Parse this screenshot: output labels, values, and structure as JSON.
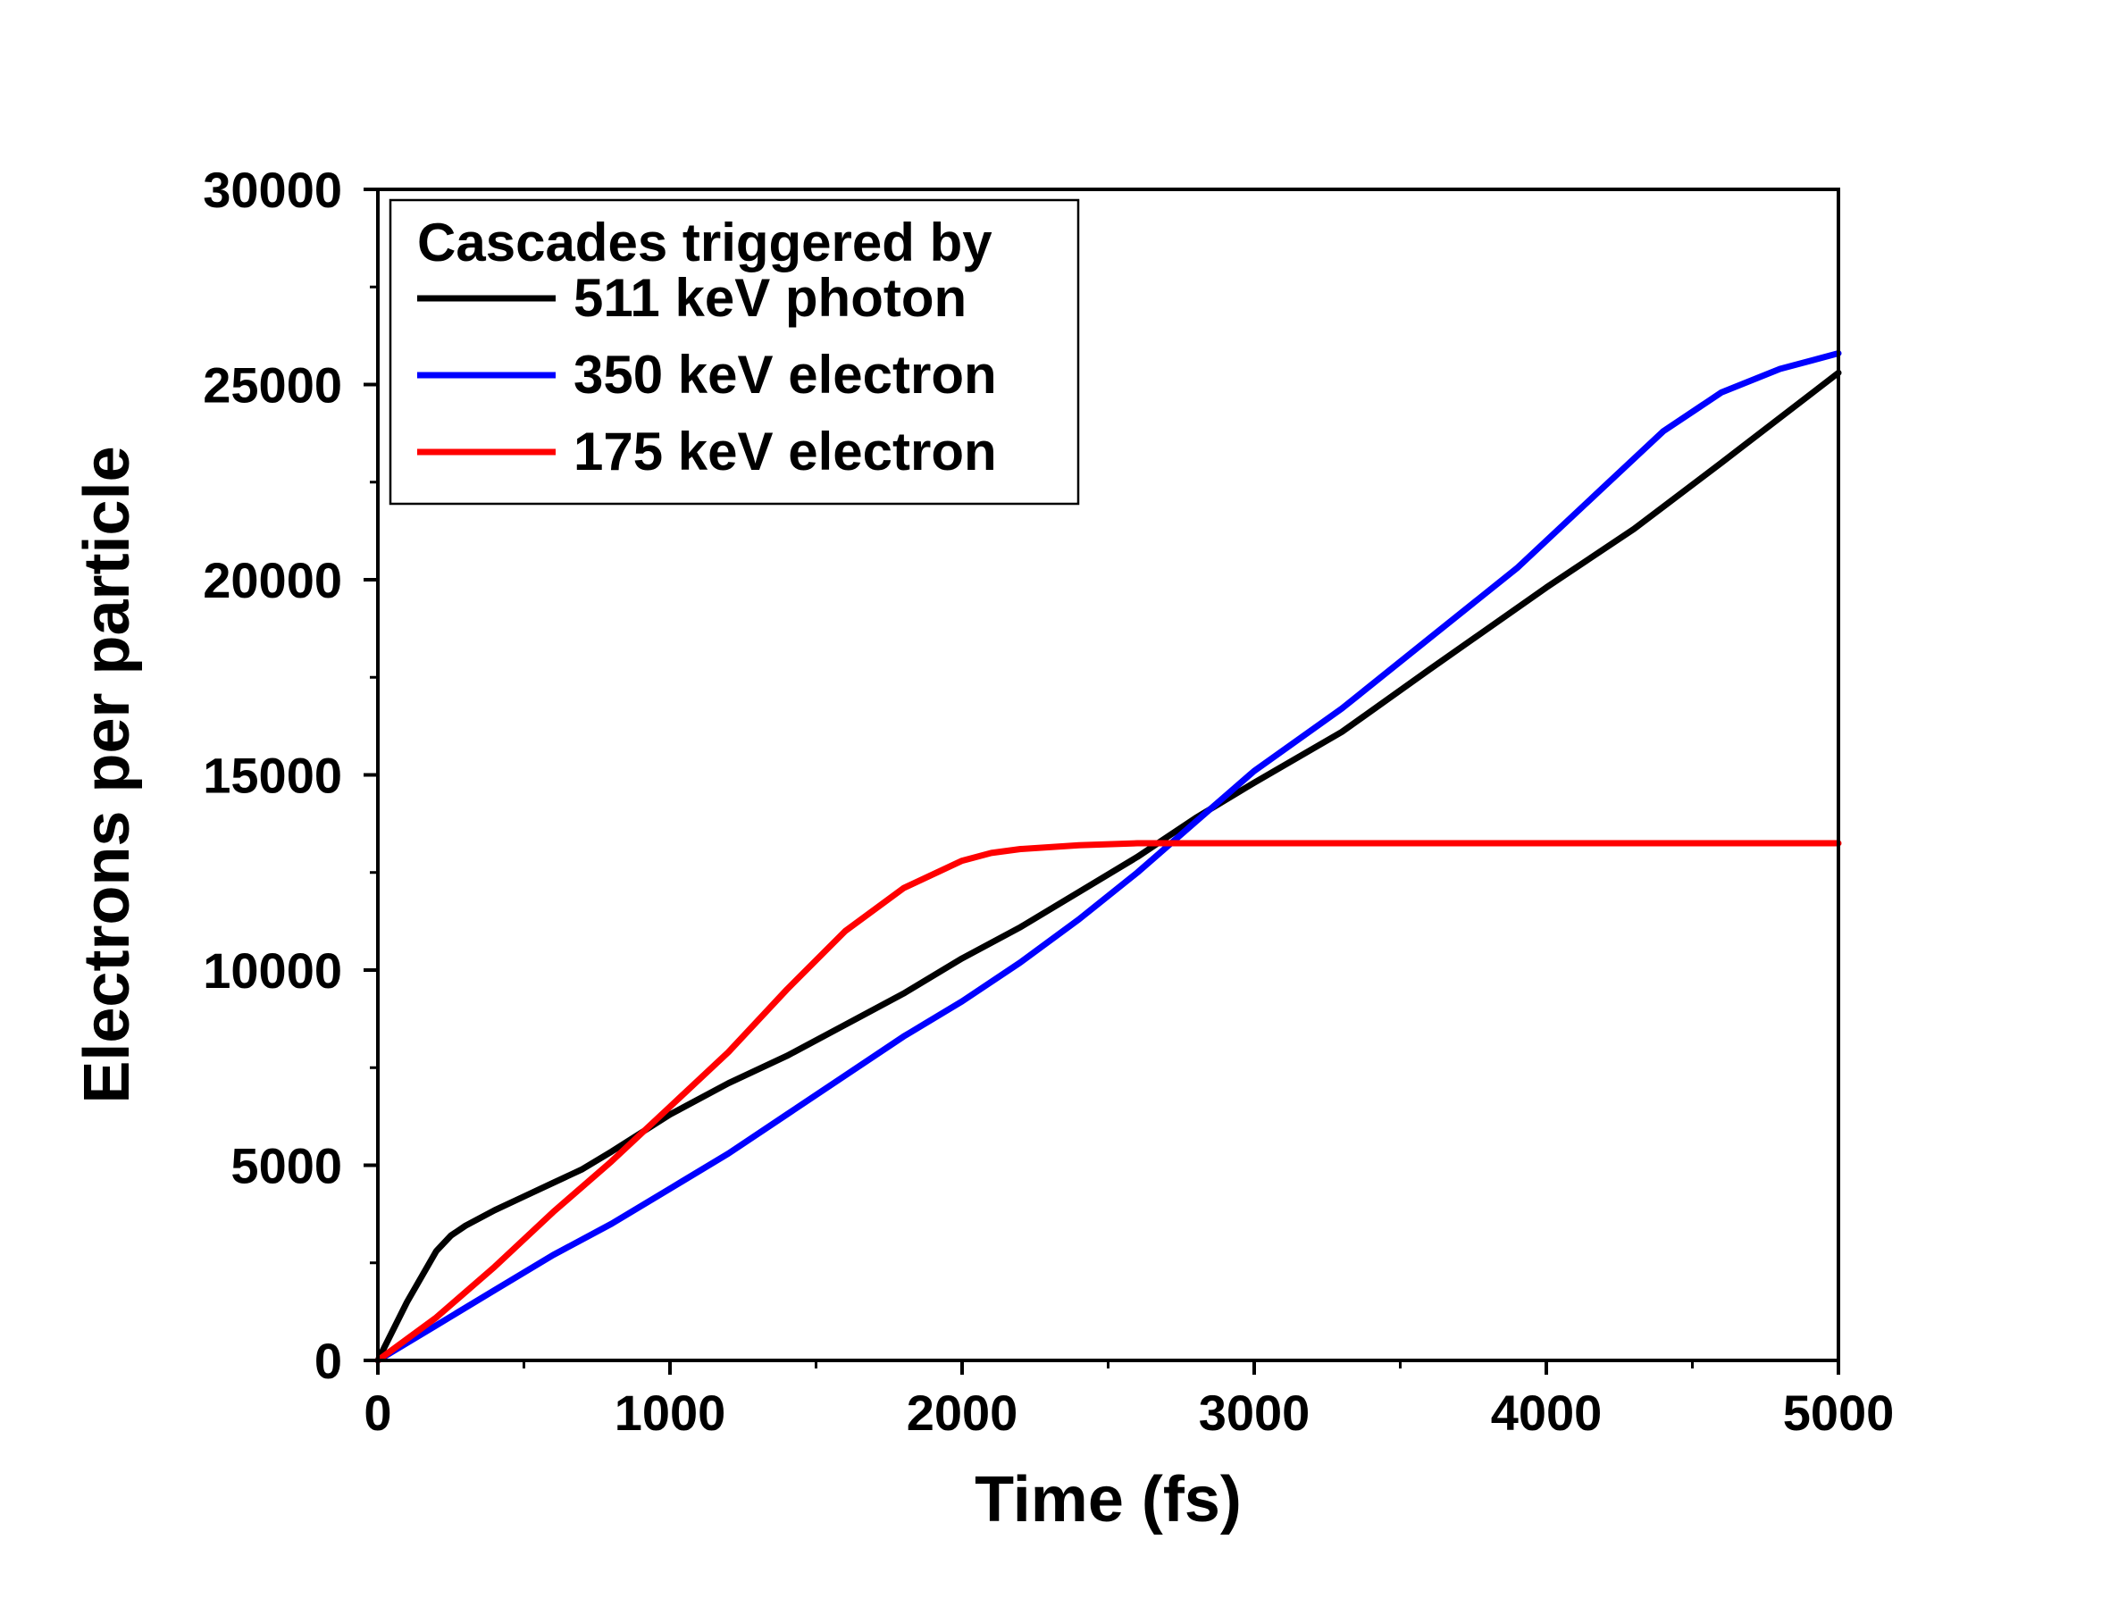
{
  "chart_data": {
    "type": "line",
    "xlabel": "Time (fs)",
    "ylabel": "Electrons per particle",
    "xlim": [
      0,
      5000
    ],
    "ylim": [
      0,
      30000
    ],
    "x_ticks": [
      0,
      1000,
      2000,
      3000,
      4000,
      5000
    ],
    "y_ticks": [
      0,
      5000,
      10000,
      15000,
      20000,
      25000,
      30000
    ],
    "grid": false,
    "legend": {
      "title": "Cascades triggered by",
      "position": "top-left"
    },
    "series": [
      {
        "name": "511 keV photon",
        "color": "#000000",
        "x": [
          0,
          100,
          200,
          250,
          300,
          400,
          500,
          600,
          700,
          800,
          1000,
          1200,
          1400,
          1600,
          1800,
          2000,
          2200,
          2400,
          2600,
          2800,
          3000,
          3300,
          3600,
          4000,
          4300,
          4600,
          5000
        ],
        "y": [
          0,
          1500,
          2800,
          3200,
          3450,
          3850,
          4200,
          4550,
          4900,
          5350,
          6300,
          7100,
          7800,
          8600,
          9400,
          10300,
          11100,
          12000,
          12900,
          13900,
          14800,
          16100,
          17700,
          19800,
          21300,
          23000,
          25300
        ]
      },
      {
        "name": "350 keV electron",
        "color": "#0000ff",
        "x": [
          0,
          200,
          400,
          600,
          800,
          1000,
          1200,
          1400,
          1600,
          1800,
          2000,
          2200,
          2400,
          2600,
          2800,
          3000,
          3300,
          3600,
          3900,
          4200,
          4400,
          4600,
          4800,
          5000
        ],
        "y": [
          0,
          900,
          1800,
          2700,
          3500,
          4400,
          5300,
          6300,
          7300,
          8300,
          9200,
          10200,
          11300,
          12500,
          13800,
          15100,
          16700,
          18500,
          20300,
          22400,
          23800,
          24800,
          25400,
          25800
        ]
      },
      {
        "name": "175 keV electron",
        "color": "#ff0000",
        "x": [
          0,
          200,
          400,
          600,
          800,
          1000,
          1200,
          1400,
          1600,
          1800,
          2000,
          2100,
          2200,
          2400,
          2600,
          3000,
          3500,
          4000,
          4500,
          5000
        ],
        "y": [
          0,
          1100,
          2400,
          3800,
          5100,
          6500,
          7900,
          9500,
          11000,
          12100,
          12800,
          13000,
          13100,
          13200,
          13250,
          13250,
          13250,
          13250,
          13250,
          13250
        ]
      }
    ]
  }
}
